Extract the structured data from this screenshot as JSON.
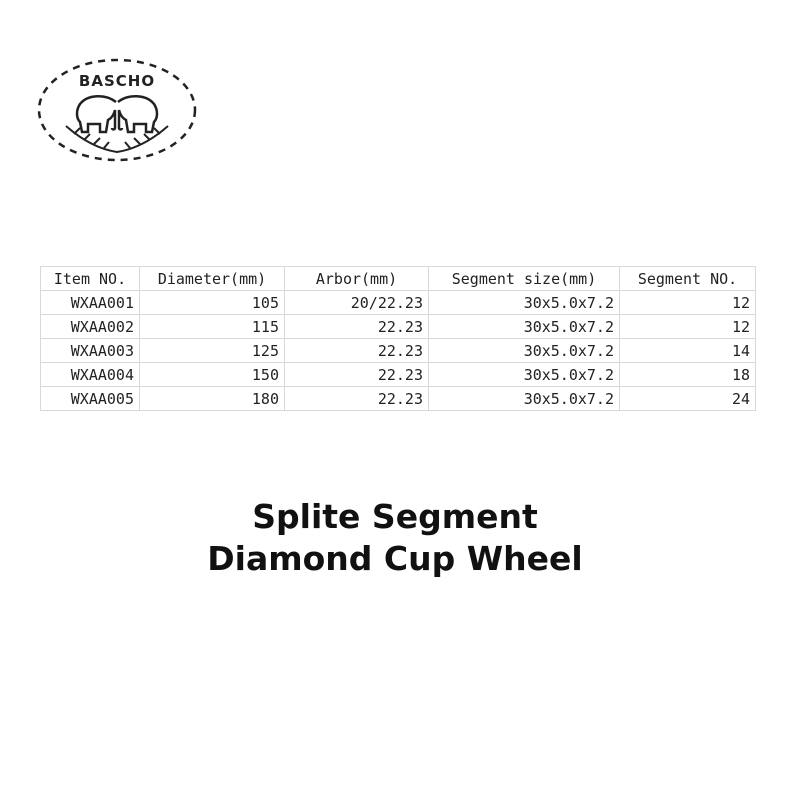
{
  "logo": {
    "brand": "BASCHO"
  },
  "table": {
    "headers": [
      "Item NO.",
      "Diameter(mm)",
      "Arbor(mm)",
      "Segment size(mm)",
      "Segment NO."
    ],
    "rows": [
      [
        "WXAA001",
        "105",
        "20/22.23",
        "30x5.0x7.2",
        "12"
      ],
      [
        "WXAA002",
        "115",
        "22.23",
        "30x5.0x7.2",
        "12"
      ],
      [
        "WXAA003",
        "125",
        "22.23",
        "30x5.0x7.2",
        "14"
      ],
      [
        "WXAA004",
        "150",
        "22.23",
        "30x5.0x7.2",
        "18"
      ],
      [
        "WXAA005",
        "180",
        "22.23",
        "30x5.0x7.2",
        "24"
      ]
    ]
  },
  "title": {
    "line1": "Splite Segment",
    "line2": "Diamond Cup Wheel"
  }
}
